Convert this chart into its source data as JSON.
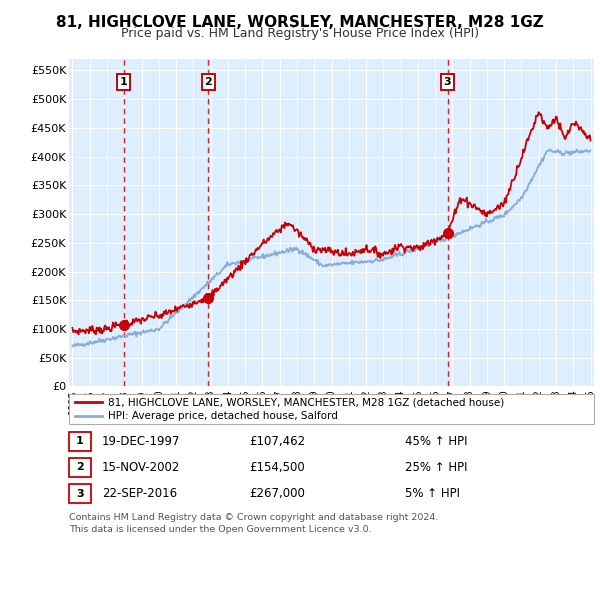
{
  "title": "81, HIGHCLOVE LANE, WORSLEY, MANCHESTER, M28 1GZ",
  "subtitle": "Price paid vs. HM Land Registry's House Price Index (HPI)",
  "ylabel_ticks": [
    "£0",
    "£50K",
    "£100K",
    "£150K",
    "£200K",
    "£250K",
    "£300K",
    "£350K",
    "£400K",
    "£450K",
    "£500K",
    "£550K"
  ],
  "ytick_values": [
    0,
    50000,
    100000,
    150000,
    200000,
    250000,
    300000,
    350000,
    400000,
    450000,
    500000,
    550000
  ],
  "ylim": [
    0,
    570000
  ],
  "xlim_start": 1994.8,
  "xlim_end": 2025.2,
  "transactions": [
    {
      "num": 1,
      "date_str": "19-DEC-1997",
      "price": 107462,
      "pct": "45%",
      "year": 1997.96
    },
    {
      "num": 2,
      "date_str": "15-NOV-2002",
      "price": 154500,
      "pct": "25%",
      "year": 2002.87
    },
    {
      "num": 3,
      "date_str": "22-SEP-2016",
      "price": 267000,
      "pct": "5%",
      "year": 2016.72
    }
  ],
  "legend_line1": "81, HIGHCLOVE LANE, WORSLEY, MANCHESTER, M28 1GZ (detached house)",
  "legend_line2": "HPI: Average price, detached house, Salford",
  "footer1": "Contains HM Land Registry data © Crown copyright and database right 2024.",
  "footer2": "This data is licensed under the Open Government Licence v3.0.",
  "table_rows": [
    [
      "1",
      "19-DEC-1997",
      "£107,462",
      "45% ↑ HPI"
    ],
    [
      "2",
      "15-NOV-2002",
      "£154,500",
      "25% ↑ HPI"
    ],
    [
      "3",
      "22-SEP-2016",
      "£267,000",
      "5% ↑ HPI"
    ]
  ],
  "background_color": "#ffffff",
  "plot_bg_color": "#ddeeff",
  "grid_color": "#ffffff",
  "red_line_color": "#cc0000",
  "blue_line_color": "#88aadd",
  "dashed_line_color": "#cc0000",
  "title_fontsize": 11,
  "subtitle_fontsize": 9
}
